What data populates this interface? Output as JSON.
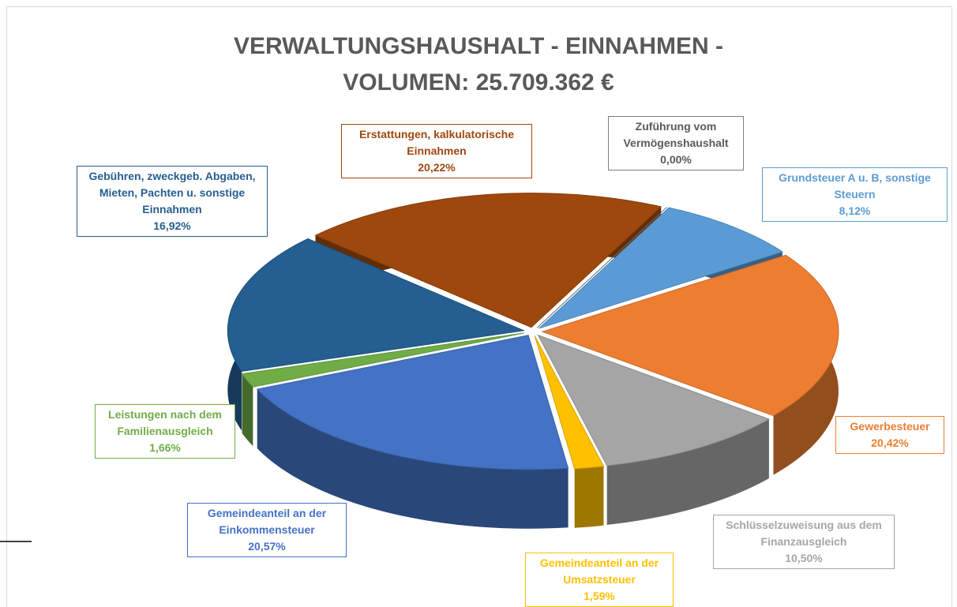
{
  "chart_data": {
    "type": "pie",
    "title": "VERWALTUNGSHAUSHALT - EINNAHMEN - VOLUMEN: 25.709.362 €",
    "categories": [
      "Zuführung vom Vermögenshaushalt",
      "Grundsteuer A u. B, sonstige Steuern",
      "Gewerbesteuer",
      "Schlüsselzuweisung aus dem Finanzausgleich",
      "Gemeindeanteil an der Umsatzsteuer",
      "Gemeindeanteil an der Einkommensteuer",
      "Leistungen nach dem Familienausgleich",
      "Gebühren, zweckgeb. Abgaben, Mieten, Pachten u. sonstige Einnahmen",
      "Erstattungen, kalkulatorische Einnahmen"
    ],
    "values": [
      0.0,
      8.12,
      20.42,
      10.5,
      1.59,
      20.57,
      1.66,
      16.92,
      20.22
    ],
    "value_labels": [
      "0,00%",
      "8,12%",
      "20,42%",
      "10,50%",
      "1,59%",
      "20,57%",
      "1,66%",
      "16,92%",
      "20,22%"
    ],
    "colors": [
      "#7f7f7f",
      "#5b9bd5",
      "#ed7d31",
      "#a5a5a5",
      "#ffc000",
      "#4472c4",
      "#70ad47",
      "#255e91",
      "#9e480e"
    ]
  }
}
